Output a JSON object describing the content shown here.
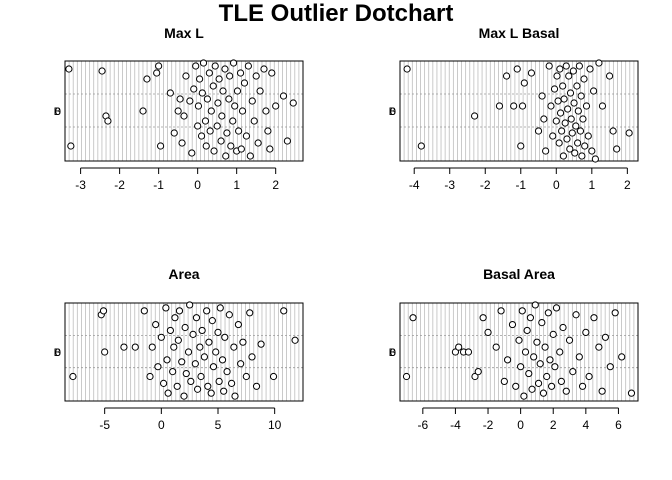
{
  "figure": {
    "title": "TLE Outlier Dotchart"
  },
  "chart_data": [
    {
      "type": "scatter",
      "title": "Max L",
      "xlabel": "",
      "ylabel": "",
      "xlim": [
        -3.4,
        2.7
      ],
      "xticks": [
        -3,
        -2,
        -1,
        0,
        1,
        2
      ],
      "grid": "vertical",
      "ytick_labels": [
        "0",
        "B"
      ],
      "x": [
        -3.3,
        -3.25,
        -2.45,
        -2.35,
        -2.3,
        -1.4,
        -1.3,
        -1.05,
        -1.0,
        -0.95,
        -0.7,
        -0.6,
        -0.5,
        -0.45,
        -0.4,
        -0.35,
        -0.3,
        -0.2,
        -0.15,
        -0.1,
        -0.05,
        0.0,
        0.02,
        0.05,
        0.1,
        0.12,
        0.15,
        0.2,
        0.22,
        0.25,
        0.3,
        0.32,
        0.35,
        0.4,
        0.42,
        0.45,
        0.5,
        0.52,
        0.55,
        0.6,
        0.62,
        0.65,
        0.7,
        0.72,
        0.75,
        0.8,
        0.82,
        0.85,
        0.9,
        0.92,
        0.95,
        1.0,
        1.02,
        1.05,
        1.1,
        1.12,
        1.15,
        1.2,
        1.25,
        1.3,
        1.35,
        1.4,
        1.45,
        1.5,
        1.55,
        1.6,
        1.7,
        1.75,
        1.8,
        1.85,
        1.9,
        2.0,
        2.2,
        2.3,
        2.45
      ],
      "y": [
        0.92,
        0.15,
        0.9,
        0.45,
        0.4,
        0.5,
        0.82,
        0.88,
        0.95,
        0.15,
        0.68,
        0.28,
        0.5,
        0.62,
        0.18,
        0.45,
        0.85,
        0.6,
        0.08,
        0.72,
        0.95,
        0.35,
        0.55,
        0.82,
        0.25,
        0.68,
        0.98,
        0.4,
        0.15,
        0.62,
        0.88,
        0.3,
        0.5,
        0.75,
        0.1,
        0.95,
        0.35,
        0.58,
        0.82,
        0.2,
        0.45,
        0.7,
        0.92,
        0.05,
        0.28,
        0.62,
        0.85,
        0.15,
        0.4,
        0.98,
        0.55,
        0.1,
        0.7,
        0.3,
        0.88,
        0.12,
        0.5,
        0.78,
        0.25,
        0.95,
        0.05,
        0.6,
        0.4,
        0.85,
        0.18,
        0.7,
        0.92,
        0.5,
        0.3,
        0.12,
        0.88,
        0.55,
        0.65,
        0.2,
        0.58
      ]
    },
    {
      "type": "scatter",
      "title": "Max L Basal",
      "xlabel": "",
      "ylabel": "",
      "xlim": [
        -4.4,
        2.3
      ],
      "xticks": [
        -4,
        -3,
        -2,
        -1,
        0,
        1,
        2
      ],
      "grid": "vertical",
      "ytick_labels": [
        "0",
        "B"
      ],
      "x": [
        -4.2,
        -3.8,
        -2.3,
        -1.6,
        -1.4,
        -1.2,
        -1.1,
        -1.0,
        -0.95,
        -0.9,
        -0.7,
        -0.5,
        -0.4,
        -0.35,
        -0.3,
        -0.2,
        -0.15,
        -0.1,
        -0.05,
        0.0,
        0.02,
        0.05,
        0.08,
        0.1,
        0.12,
        0.15,
        0.18,
        0.2,
        0.22,
        0.25,
        0.28,
        0.3,
        0.32,
        0.35,
        0.38,
        0.4,
        0.42,
        0.45,
        0.48,
        0.5,
        0.52,
        0.55,
        0.58,
        0.6,
        0.62,
        0.65,
        0.68,
        0.7,
        0.72,
        0.75,
        0.78,
        0.8,
        0.85,
        0.9,
        0.95,
        1.0,
        1.05,
        1.1,
        1.2,
        1.3,
        1.5,
        1.6,
        1.7,
        2.05
      ],
      "y": [
        0.92,
        0.15,
        0.45,
        0.55,
        0.85,
        0.55,
        0.92,
        0.15,
        0.55,
        0.78,
        0.88,
        0.3,
        0.65,
        0.42,
        0.1,
        0.95,
        0.55,
        0.25,
        0.72,
        0.4,
        0.85,
        0.6,
        0.18,
        0.92,
        0.48,
        0.3,
        0.75,
        0.05,
        0.62,
        0.38,
        0.95,
        0.22,
        0.52,
        0.85,
        0.12,
        0.68,
        0.42,
        0.28,
        0.9,
        0.58,
        0.08,
        0.35,
        0.75,
        0.18,
        0.5,
        0.95,
        0.3,
        0.65,
        0.05,
        0.42,
        0.82,
        0.15,
        0.55,
        0.25,
        0.92,
        0.1,
        0.7,
        0.02,
        0.98,
        0.55,
        0.85,
        0.3,
        0.12,
        0.28
      ]
    },
    {
      "type": "scatter",
      "title": "Area",
      "xlabel": "",
      "ylabel": "",
      "xlim": [
        -8.5,
        12.5
      ],
      "xticks": [
        -5,
        0,
        5,
        10
      ],
      "grid": "vertical",
      "ytick_labels": [
        "0",
        "B"
      ],
      "x": [
        -7.8,
        -5.3,
        -5.1,
        -5.0,
        -3.3,
        -2.3,
        -1.5,
        -1.0,
        -0.8,
        -0.5,
        -0.3,
        0.0,
        0.2,
        0.4,
        0.5,
        0.6,
        0.8,
        1.0,
        1.1,
        1.2,
        1.4,
        1.5,
        1.6,
        1.8,
        2.0,
        2.1,
        2.2,
        2.4,
        2.5,
        2.6,
        2.8,
        3.0,
        3.1,
        3.2,
        3.4,
        3.5,
        3.6,
        3.8,
        4.0,
        4.1,
        4.2,
        4.4,
        4.5,
        4.6,
        4.8,
        5.0,
        5.1,
        5.2,
        5.4,
        5.5,
        5.6,
        5.8,
        6.0,
        6.2,
        6.4,
        6.5,
        6.8,
        7.0,
        7.2,
        7.5,
        7.8,
        8.0,
        8.4,
        8.8,
        9.9,
        10.8,
        11.8
      ],
      "y": [
        0.25,
        0.88,
        0.92,
        0.5,
        0.55,
        0.55,
        0.92,
        0.25,
        0.55,
        0.78,
        0.35,
        0.65,
        0.18,
        0.95,
        0.42,
        0.08,
        0.72,
        0.3,
        0.55,
        0.85,
        0.15,
        0.62,
        0.92,
        0.4,
        0.05,
        0.75,
        0.28,
        0.5,
        0.98,
        0.2,
        0.68,
        0.38,
        0.85,
        0.12,
        0.55,
        0.25,
        0.72,
        0.45,
        0.92,
        0.15,
        0.6,
        0.08,
        0.82,
        0.35,
        0.5,
        0.7,
        0.2,
        0.95,
        0.42,
        0.1,
        0.65,
        0.3,
        0.88,
        0.18,
        0.55,
        0.05,
        0.78,
        0.38,
        0.6,
        0.25,
        0.9,
        0.45,
        0.15,
        0.58,
        0.25,
        0.92,
        0.62
      ]
    },
    {
      "type": "scatter",
      "title": "Basal Area",
      "xlabel": "",
      "ylabel": "",
      "xlim": [
        -7.4,
        7.2
      ],
      "xticks": [
        -6,
        -4,
        -2,
        0,
        2,
        4,
        6
      ],
      "grid": "vertical",
      "ytick_labels": [
        "0",
        "B"
      ],
      "x": [
        -7.0,
        -6.6,
        -4.0,
        -3.8,
        -3.5,
        -3.2,
        -2.8,
        -2.6,
        -2.3,
        -2.0,
        -1.5,
        -1.2,
        -1.0,
        -0.8,
        -0.5,
        -0.3,
        -0.1,
        0.0,
        0.1,
        0.2,
        0.3,
        0.4,
        0.5,
        0.6,
        0.7,
        0.8,
        0.9,
        1.0,
        1.1,
        1.2,
        1.3,
        1.4,
        1.5,
        1.6,
        1.7,
        1.8,
        1.9,
        2.0,
        2.1,
        2.2,
        2.4,
        2.5,
        2.6,
        2.8,
        3.0,
        3.2,
        3.4,
        3.6,
        3.8,
        4.0,
        4.2,
        4.5,
        4.8,
        5.0,
        5.2,
        5.5,
        5.8,
        6.2,
        6.8
      ],
      "y": [
        0.25,
        0.85,
        0.5,
        0.55,
        0.5,
        0.5,
        0.25,
        0.3,
        0.85,
        0.7,
        0.55,
        0.92,
        0.2,
        0.42,
        0.78,
        0.15,
        0.62,
        0.35,
        0.92,
        0.05,
        0.5,
        0.72,
        0.28,
        0.85,
        0.12,
        0.45,
        0.98,
        0.6,
        0.18,
        0.38,
        0.8,
        0.08,
        0.55,
        0.25,
        0.9,
        0.42,
        0.15,
        0.68,
        0.35,
        0.95,
        0.5,
        0.2,
        0.75,
        0.1,
        0.62,
        0.3,
        0.88,
        0.45,
        0.15,
        0.7,
        0.25,
        0.85,
        0.55,
        0.1,
        0.65,
        0.35,
        0.9,
        0.45,
        0.08
      ]
    }
  ]
}
